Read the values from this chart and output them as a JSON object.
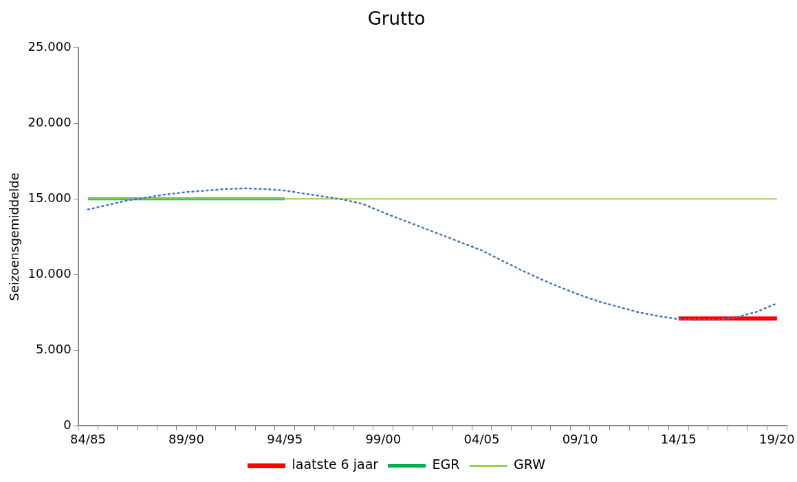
{
  "chart_data": {
    "type": "line",
    "title": "Grutto",
    "ylabel": "Seizoensgemiddelde",
    "categories": [
      "84/85",
      null,
      null,
      null,
      null,
      "89/90",
      null,
      null,
      null,
      null,
      "94/95",
      null,
      null,
      null,
      null,
      "99/00",
      null,
      null,
      null,
      null,
      "04/05",
      null,
      null,
      null,
      null,
      "09/10",
      null,
      null,
      null,
      null,
      "14/15",
      null,
      null,
      null,
      null,
      "19/20"
    ],
    "series": [
      {
        "name": "laatste 6 jaar",
        "color": "#ff0000",
        "values": [
          null,
          null,
          null,
          null,
          null,
          null,
          null,
          null,
          null,
          null,
          null,
          null,
          null,
          null,
          null,
          null,
          null,
          null,
          null,
          null,
          null,
          null,
          null,
          null,
          null,
          null,
          null,
          null,
          null,
          null,
          7100,
          7100,
          7100,
          7100,
          7100,
          7100
        ]
      },
      {
        "name": "EGR",
        "color": "#00b050",
        "values": [
          15000,
          15000,
          15000,
          15000,
          15000,
          15000,
          15000,
          15000,
          15000,
          15000,
          15000,
          null,
          null,
          null,
          null,
          null,
          null,
          null,
          null,
          null,
          null,
          null,
          null,
          null,
          null,
          null,
          null,
          null,
          null,
          null,
          null,
          null,
          null,
          null,
          null,
          null
        ]
      },
      {
        "name": "GRW",
        "color": "#92d050",
        "values": [
          15000,
          15000,
          15000,
          15000,
          15000,
          15000,
          15000,
          15000,
          15000,
          15000,
          15000,
          15000,
          15000,
          15000,
          15000,
          15000,
          15000,
          15000,
          15000,
          15000,
          15000,
          15000,
          15000,
          15000,
          15000,
          15000,
          15000,
          15000,
          15000,
          15000,
          15000,
          15000,
          15000,
          15000,
          15000,
          15000
        ]
      },
      {
        "color": "#4472c4",
        "line_style": "dotted",
        "values": [
          14300,
          14600,
          14900,
          15100,
          15300,
          15450,
          15550,
          15650,
          15700,
          15650,
          15550,
          15350,
          15150,
          14950,
          14650,
          14100,
          13600,
          13100,
          12600,
          12100,
          11600,
          10950,
          10300,
          9700,
          9150,
          8650,
          8200,
          7850,
          7500,
          7250,
          7050,
          7000,
          7000,
          7200,
          7550,
          8100
        ]
      }
    ],
    "ylim": [
      0,
      25000
    ],
    "yticks": [
      {
        "value": 0,
        "label": "0"
      },
      {
        "value": 5000,
        "label": "5.000"
      },
      {
        "value": 10000,
        "label": "10.000"
      },
      {
        "value": 15000,
        "label": "15.000"
      },
      {
        "value": 20000,
        "label": "20.000"
      },
      {
        "value": 25000,
        "label": "25.000"
      }
    ],
    "grid": false,
    "legend": "bottom",
    "marker": "none"
  }
}
